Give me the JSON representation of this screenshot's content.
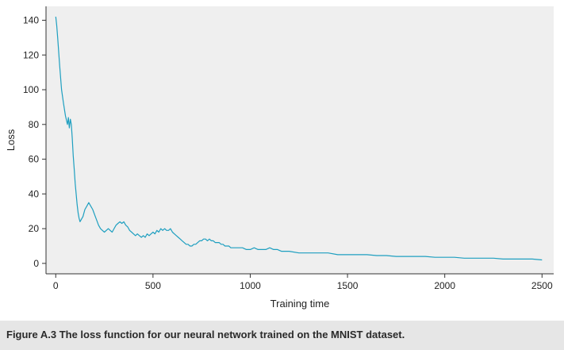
{
  "caption": "Figure A.3   The loss function for our neural network trained on the MNIST dataset.",
  "chart_data": {
    "type": "line",
    "title": "",
    "xlabel": "Training time",
    "ylabel": "Loss",
    "xlim": [
      -50,
      2560
    ],
    "ylim": [
      -6,
      148
    ],
    "xticks": [
      0,
      500,
      1000,
      1500,
      2000,
      2500
    ],
    "yticks": [
      0,
      20,
      40,
      60,
      80,
      100,
      120,
      140
    ],
    "xtick_labels": [
      "0",
      "500",
      "1000",
      "1500",
      "2000",
      "2500"
    ],
    "ytick_labels": [
      "0",
      "20",
      "40",
      "60",
      "80",
      "100",
      "120",
      "140"
    ],
    "grid": false,
    "legend": "none",
    "background": "#efefef",
    "line_color": "#1e9fc0",
    "series": [
      {
        "x": [
          0,
          5,
          10,
          20,
          30,
          40,
          50,
          60,
          65,
          70,
          75,
          80,
          85,
          90,
          95,
          100,
          105,
          110,
          115,
          120,
          125,
          130,
          140,
          150,
          160,
          170,
          180,
          190,
          200,
          210,
          220,
          230,
          240,
          250,
          260,
          270,
          280,
          290,
          300,
          310,
          320,
          330,
          340,
          350,
          360,
          370,
          380,
          390,
          400,
          410,
          420,
          430,
          440,
          450,
          460,
          470,
          480,
          490,
          500,
          510,
          520,
          530,
          540,
          550,
          560,
          570,
          580,
          590,
          600,
          610,
          620,
          630,
          640,
          650,
          660,
          670,
          680,
          690,
          700,
          710,
          720,
          730,
          740,
          750,
          760,
          770,
          780,
          790,
          800,
          810,
          820,
          830,
          840,
          850,
          860,
          870,
          880,
          890,
          900,
          920,
          940,
          960,
          980,
          1000,
          1020,
          1040,
          1060,
          1080,
          1100,
          1120,
          1140,
          1160,
          1180,
          1200,
          1250,
          1300,
          1350,
          1400,
          1450,
          1500,
          1550,
          1600,
          1650,
          1700,
          1750,
          1800,
          1850,
          1900,
          1950,
          2000,
          2050,
          2100,
          2150,
          2200,
          2250,
          2300,
          2350,
          2400,
          2450,
          2500
        ],
        "y": [
          142,
          137,
          130,
          114,
          100,
          92,
          85,
          80,
          84,
          78,
          83,
          80,
          72,
          62,
          54,
          46,
          40,
          34,
          29,
          26,
          24,
          25,
          27,
          31,
          33,
          35,
          33,
          31,
          28,
          25,
          22,
          20,
          19,
          18,
          19,
          20,
          19,
          18,
          20,
          22,
          23,
          24,
          23,
          24,
          22,
          21,
          19,
          18,
          17,
          16,
          17,
          16,
          15,
          16,
          15,
          17,
          16,
          17,
          18,
          17,
          19,
          18,
          20,
          19,
          20,
          19,
          19,
          20,
          18,
          17,
          16,
          15,
          14,
          13,
          12,
          11,
          11,
          10,
          10,
          11,
          11,
          12,
          13,
          13,
          14,
          14,
          13,
          14,
          13,
          13,
          12,
          12,
          12,
          11,
          11,
          10,
          10,
          10,
          9,
          9,
          9,
          9,
          8,
          8,
          9,
          8,
          8,
          8,
          9,
          8,
          8,
          7,
          7,
          7,
          6,
          6,
          6,
          6,
          5,
          5,
          5,
          5,
          4.5,
          4.5,
          4,
          4,
          4,
          4,
          3.5,
          3.5,
          3.5,
          3,
          3,
          3,
          3,
          2.5,
          2.5,
          2.5,
          2.5,
          2
        ]
      }
    ]
  }
}
